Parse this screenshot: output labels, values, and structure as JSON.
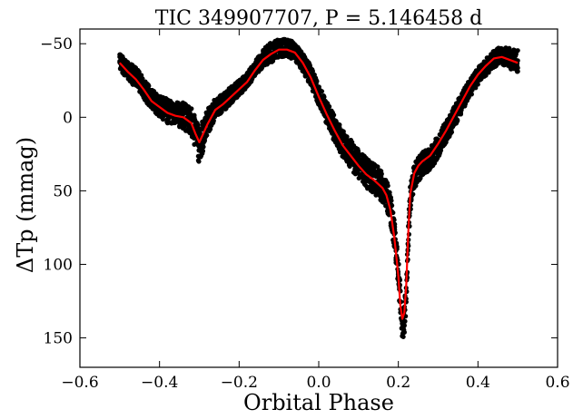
{
  "chart_data": {
    "type": "scatter",
    "title": "TIC 349907707, P = 5.146458 d",
    "xlabel": "Orbital Phase",
    "ylabel": "ΔTp (mmag)",
    "xlim": [
      -0.6,
      0.6
    ],
    "ylim": [
      170,
      -60
    ],
    "y_inverted": true,
    "xticks": [
      -0.6,
      -0.4,
      -0.2,
      0.0,
      0.2,
      0.4,
      0.6
    ],
    "xtick_labels": [
      "−0.6",
      "−0.4",
      "−0.2",
      "0.0",
      "0.2",
      "0.4",
      "0.6"
    ],
    "yticks": [
      -50,
      0,
      50,
      100,
      150
    ],
    "ytick_labels": [
      "−50",
      "0",
      "50",
      "100",
      "150"
    ],
    "grid": false,
    "legend": null,
    "series": [
      {
        "kind": "observations",
        "color": "#000000",
        "x": [
          -0.5,
          -0.48,
          -0.46,
          -0.44,
          -0.42,
          -0.4,
          -0.38,
          -0.36,
          -0.34,
          -0.32,
          -0.31,
          -0.3,
          -0.29,
          -0.28,
          -0.26,
          -0.24,
          -0.22,
          -0.2,
          -0.18,
          -0.16,
          -0.14,
          -0.12,
          -0.1,
          -0.08,
          -0.06,
          -0.04,
          -0.02,
          0.0,
          0.02,
          0.04,
          0.06,
          0.08,
          0.1,
          0.12,
          0.14,
          0.16,
          0.17,
          0.18,
          0.19,
          0.2,
          0.205,
          0.21,
          0.215,
          0.22,
          0.225,
          0.23,
          0.24,
          0.25,
          0.26,
          0.28,
          0.3,
          0.32,
          0.34,
          0.36,
          0.38,
          0.4,
          0.42,
          0.44,
          0.46,
          0.48,
          0.5
        ],
        "y": [
          -38,
          -32,
          -27,
          -20,
          -12,
          -8,
          -4,
          -2,
          -1,
          3,
          10,
          20,
          12,
          4,
          -6,
          -10,
          -15,
          -20,
          -25,
          -33,
          -40,
          -44,
          -47,
          -47,
          -45,
          -38,
          -28,
          -15,
          -3,
          8,
          18,
          25,
          32,
          38,
          42,
          47,
          52,
          62,
          80,
          105,
          125,
          142,
          138,
          118,
          80,
          55,
          40,
          35,
          32,
          28,
          20,
          10,
          0,
          -10,
          -20,
          -28,
          -34,
          -40,
          -42,
          -40,
          -38
        ],
        "spread": [
          6,
          6,
          7,
          7,
          7,
          8,
          8,
          8,
          9,
          9,
          11,
          14,
          10,
          9,
          7,
          6,
          6,
          5,
          5,
          5,
          6,
          7,
          6,
          6,
          6,
          7,
          7,
          7,
          8,
          9,
          9,
          10,
          10,
          10,
          10,
          11,
          10,
          10,
          10,
          10,
          10,
          10,
          10,
          10,
          10,
          10,
          9,
          9,
          8,
          8,
          8,
          8,
          7,
          7,
          6,
          6,
          6,
          6,
          6,
          7,
          8
        ]
      },
      {
        "kind": "model",
        "color": "#ff0000",
        "x": [
          -0.5,
          -0.48,
          -0.46,
          -0.44,
          -0.42,
          -0.4,
          -0.38,
          -0.36,
          -0.34,
          -0.32,
          -0.31,
          -0.3,
          -0.29,
          -0.28,
          -0.26,
          -0.24,
          -0.22,
          -0.2,
          -0.18,
          -0.16,
          -0.14,
          -0.12,
          -0.1,
          -0.08,
          -0.06,
          -0.04,
          -0.02,
          0.0,
          0.02,
          0.04,
          0.06,
          0.08,
          0.1,
          0.12,
          0.14,
          0.16,
          0.17,
          0.18,
          0.19,
          0.2,
          0.205,
          0.21,
          0.215,
          0.22,
          0.225,
          0.23,
          0.24,
          0.25,
          0.26,
          0.28,
          0.3,
          0.32,
          0.34,
          0.36,
          0.38,
          0.4,
          0.42,
          0.44,
          0.46,
          0.48,
          0.5
        ],
        "y": [
          -37,
          -31,
          -26,
          -19,
          -11,
          -7,
          -3,
          -1,
          0,
          4,
          11,
          17,
          11,
          5,
          -5,
          -9,
          -14,
          -19,
          -24,
          -32,
          -39,
          -43,
          -46,
          -46,
          -44,
          -37,
          -27,
          -14,
          -2,
          9,
          19,
          26,
          33,
          39,
          43,
          48,
          53,
          63,
          82,
          108,
          128,
          137,
          133,
          113,
          78,
          52,
          38,
          33,
          30,
          26,
          18,
          9,
          -1,
          -11,
          -21,
          -29,
          -35,
          -40,
          -41,
          -39,
          -37
        ]
      }
    ]
  }
}
